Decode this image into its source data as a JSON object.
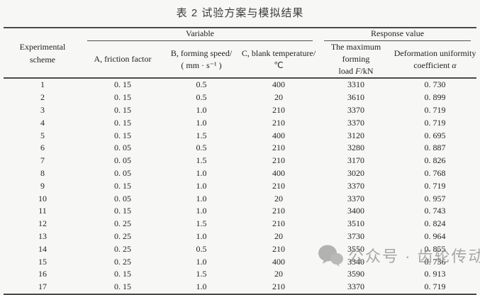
{
  "title": "表 2 试验方案与模拟结果",
  "table": {
    "col1_header_line1": "Experimental",
    "col1_header_line2": "scheme",
    "group_variable": "Variable",
    "group_response": "Response value",
    "col_a_label": "A,  friction factor",
    "col_b_line1": "B,  forming speed/",
    "col_b_line2": "( mm · s⁻¹ )",
    "col_c_line1": "C,  blank temperature/",
    "col_c_line2": "℃",
    "col_f_line1": "The maximum forming",
    "col_f_line2_pre": "load ",
    "col_f_line2_sym": "F",
    "col_f_line2_post": "/kN",
    "col_u_line1": "Deformation uniformity",
    "col_u_line2_pre": "coefficient ",
    "col_u_line2_sym": "α",
    "columns": [
      "Experimental scheme",
      "A, friction factor",
      "B, forming speed/(mm·s⁻¹)",
      "C, blank temperature/℃",
      "The maximum forming load F/kN",
      "Deformation uniformity coefficient α"
    ],
    "rows": [
      [
        "1",
        "0. 15",
        "0.5",
        "400",
        "3310",
        "0. 730"
      ],
      [
        "2",
        "0. 15",
        "0.5",
        "20",
        "3610",
        "0. 899"
      ],
      [
        "3",
        "0. 15",
        "1.0",
        "210",
        "3370",
        "0. 719"
      ],
      [
        "4",
        "0. 15",
        "1.0",
        "210",
        "3370",
        "0. 719"
      ],
      [
        "5",
        "0. 15",
        "1.5",
        "400",
        "3120",
        "0. 695"
      ],
      [
        "6",
        "0. 05",
        "0.5",
        "210",
        "3280",
        "0. 887"
      ],
      [
        "7",
        "0. 05",
        "1.5",
        "210",
        "3170",
        "0. 826"
      ],
      [
        "8",
        "0. 05",
        "1.0",
        "400",
        "3020",
        "0. 768"
      ],
      [
        "9",
        "0. 15",
        "1.0",
        "210",
        "3370",
        "0. 719"
      ],
      [
        "10",
        "0. 05",
        "1.0",
        "20",
        "3370",
        "0. 957"
      ],
      [
        "11",
        "0. 15",
        "1.0",
        "210",
        "3400",
        "0. 743"
      ],
      [
        "12",
        "0. 25",
        "1.5",
        "210",
        "3510",
        "0. 824"
      ],
      [
        "13",
        "0. 25",
        "1.0",
        "20",
        "3730",
        "0. 964"
      ],
      [
        "14",
        "0. 25",
        "0.5",
        "210",
        "3550",
        "0. 855"
      ],
      [
        "15",
        "0. 25",
        "1.0",
        "400",
        "3340",
        "0. 736"
      ],
      [
        "16",
        "0. 15",
        "1.5",
        "20",
        "3590",
        "0. 913"
      ],
      [
        "17",
        "0. 15",
        "1.0",
        "210",
        "3370",
        "0. 719"
      ]
    ]
  },
  "watermark": {
    "text": "公众号 · 齿轮传动",
    "icon": "wechat-logo-icon",
    "color": "#8c8c8c"
  }
}
